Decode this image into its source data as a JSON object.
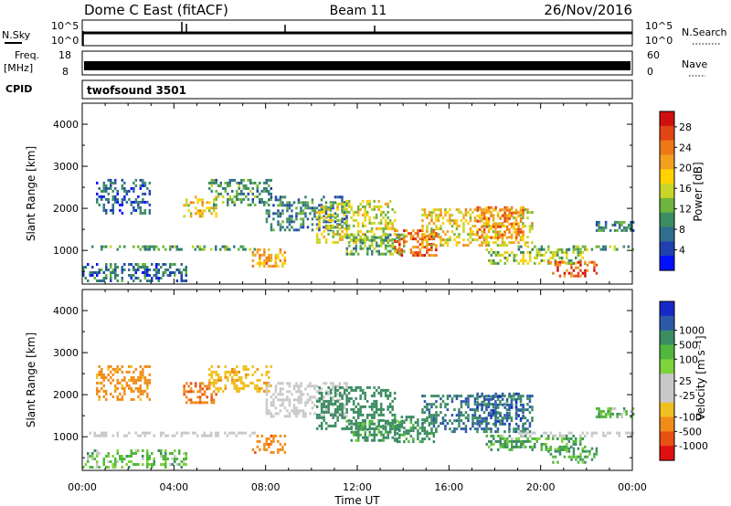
{
  "header": {
    "title": "Dome C East (fitACF)",
    "beam": "Beam 11",
    "date": "26/Nov/2016"
  },
  "nsky_panel": {
    "left_label": "N.Sky",
    "left_ticks": [
      "10^5",
      "10^0"
    ],
    "right_label": "N.Search",
    "right_ticks": [
      "10^5",
      "10^0"
    ]
  },
  "freq_panel": {
    "left_label_1": "Freq.",
    "left_label_2": "[MHz]",
    "left_ticks": [
      "18",
      "8"
    ],
    "right_label": "Nave",
    "right_ticks": [
      "60",
      "0"
    ]
  },
  "cpid": {
    "label": "CPID",
    "program": "twofsound 3501"
  },
  "colors": {
    "power_scale": [
      "#0010ff",
      "#2040b0",
      "#2f6e8e",
      "#3c8c62",
      "#6fb43c",
      "#c8d428",
      "#ffd200",
      "#f2a020",
      "#ee7818",
      "#e24414",
      "#d01010"
    ],
    "velocity_scale": [
      "#1828c8",
      "#2c58a8",
      "#3c8c62",
      "#50b83c",
      "#7ed23c",
      "#c8c8c8",
      "#c8c8c8",
      "#f0c020",
      "#f08c18",
      "#e85014",
      "#e01010"
    ]
  },
  "chart_data": [
    {
      "type": "heatmap",
      "name": "power",
      "xlabel": "",
      "ylabel": "Slant Range [km]",
      "x_range_hours": [
        0,
        24
      ],
      "ylim": [
        200,
        4500
      ],
      "x_ticks": [
        "00:00",
        "04:00",
        "08:00",
        "12:00",
        "16:00",
        "20:00",
        "00:00"
      ],
      "y_ticks": [
        1000,
        2000,
        3000,
        4000
      ],
      "colorbar": {
        "label": "Power [dB]",
        "ticks": [
          4,
          8,
          12,
          16,
          20,
          24,
          28
        ],
        "range": [
          0,
          31
        ]
      },
      "regions": [
        {
          "t0": 0.0,
          "t1": 4.5,
          "r0": 250,
          "r1": 700,
          "value": 7
        },
        {
          "t0": 0.6,
          "t1": 2.9,
          "r0": 1900,
          "r1": 2700,
          "value": 6
        },
        {
          "t0": 0.2,
          "t1": 7.5,
          "r0": 1040,
          "r1": 1120,
          "value": 11
        },
        {
          "t0": 4.4,
          "t1": 5.8,
          "r0": 1800,
          "r1": 2300,
          "value": 18
        },
        {
          "t0": 5.5,
          "t1": 8.2,
          "r0": 2100,
          "r1": 2700,
          "value": 10
        },
        {
          "t0": 7.4,
          "t1": 8.8,
          "r0": 650,
          "r1": 1050,
          "value": 21
        },
        {
          "t0": 8.0,
          "t1": 11.5,
          "r0": 1500,
          "r1": 2300,
          "value": 8
        },
        {
          "t0": 10.2,
          "t1": 13.6,
          "r0": 1200,
          "r1": 2200,
          "value": 16
        },
        {
          "t0": 11.5,
          "t1": 14.0,
          "r0": 900,
          "r1": 1400,
          "value": 12
        },
        {
          "t0": 13.6,
          "t1": 15.4,
          "r0": 850,
          "r1": 1500,
          "value": 25
        },
        {
          "t0": 14.8,
          "t1": 19.6,
          "r0": 1100,
          "r1": 2000,
          "value": 18
        },
        {
          "t0": 17.2,
          "t1": 19.2,
          "r0": 1300,
          "r1": 2050,
          "value": 23
        },
        {
          "t0": 17.6,
          "t1": 22.0,
          "r0": 700,
          "r1": 1050,
          "value": 14
        },
        {
          "t0": 19.0,
          "t1": 24.0,
          "r0": 1040,
          "r1": 1120,
          "value": 11
        },
        {
          "t0": 20.3,
          "t1": 22.4,
          "r0": 400,
          "r1": 750,
          "value": 26
        },
        {
          "t0": 22.4,
          "t1": 24.0,
          "r0": 1500,
          "r1": 1700,
          "value": 8
        }
      ]
    },
    {
      "type": "heatmap",
      "name": "velocity",
      "xlabel": "Time UT",
      "ylabel": "Slant Range [km]",
      "x_range_hours": [
        0,
        24
      ],
      "ylim": [
        200,
        4500
      ],
      "x_ticks": [
        "00:00",
        "04:00",
        "08:00",
        "12:00",
        "16:00",
        "20:00",
        "00:00"
      ],
      "y_ticks": [
        1000,
        2000,
        3000,
        4000
      ],
      "colorbar": {
        "label": "Velocity [m s⁻¹]",
        "ticks": [
          "1000",
          "500",
          "100",
          "25",
          "-25",
          "-100",
          "-500",
          "-1000"
        ]
      },
      "regions": [
        {
          "t0": 0.0,
          "t1": 4.5,
          "r0": 250,
          "r1": 700,
          "value": 60
        },
        {
          "t0": 0.6,
          "t1": 2.9,
          "r0": 1900,
          "r1": 2700,
          "value": -150
        },
        {
          "t0": 0.2,
          "t1": 7.5,
          "r0": 1040,
          "r1": 1120,
          "value": 0
        },
        {
          "t0": 4.4,
          "t1": 5.8,
          "r0": 1800,
          "r1": 2300,
          "value": -400
        },
        {
          "t0": 5.5,
          "t1": 8.2,
          "r0": 2100,
          "r1": 2700,
          "value": -80
        },
        {
          "t0": 7.4,
          "t1": 8.8,
          "r0": 650,
          "r1": 1050,
          "value": -350
        },
        {
          "t0": 8.0,
          "t1": 11.5,
          "r0": 1500,
          "r1": 2300,
          "value": 0
        },
        {
          "t0": 10.2,
          "t1": 13.6,
          "r0": 1200,
          "r1": 2200,
          "value": 300
        },
        {
          "t0": 11.5,
          "t1": 14.0,
          "r0": 900,
          "r1": 1400,
          "value": 150
        },
        {
          "t0": 13.6,
          "t1": 15.4,
          "r0": 850,
          "r1": 1500,
          "value": 200
        },
        {
          "t0": 14.8,
          "t1": 19.6,
          "r0": 1100,
          "r1": 2000,
          "value": 400
        },
        {
          "t0": 17.2,
          "t1": 19.2,
          "r0": 1300,
          "r1": 2050,
          "value": 700
        },
        {
          "t0": 17.6,
          "t1": 22.0,
          "r0": 700,
          "r1": 1050,
          "value": 90
        },
        {
          "t0": 19.0,
          "t1": 24.0,
          "r0": 1040,
          "r1": 1120,
          "value": 0
        },
        {
          "t0": 20.3,
          "t1": 22.4,
          "r0": 400,
          "r1": 750,
          "value": 120
        },
        {
          "t0": 22.4,
          "t1": 24.0,
          "r0": 1500,
          "r1": 1700,
          "value": 60
        }
      ]
    }
  ]
}
